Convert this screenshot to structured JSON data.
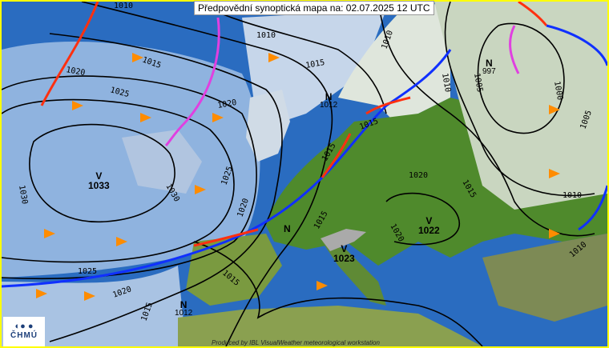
{
  "header": {
    "title": "Předpovědní synoptická mapa na: 02.07.2025 12 UTC"
  },
  "logo": {
    "text": "ČHMÚ"
  },
  "footer": {
    "credit": "Produced by IBL VisualWeather meteorological workstation"
  },
  "colors": {
    "frame": "#ffff00",
    "sea": "#2a6cc0",
    "land": "#4f8a2c",
    "cold_front": "#1030ff",
    "warm_front": "#ff3010",
    "occluded_front": "#e040e0",
    "isobar": "#000000",
    "wind_arrow": "#ff8c00"
  },
  "pressure_centers": [
    {
      "type": "V",
      "value": "1033"
    },
    {
      "type": "N",
      "value": "1012"
    },
    {
      "type": "N",
      "value": "997"
    },
    {
      "type": "V",
      "value": "1023"
    },
    {
      "type": "V",
      "value": "1022"
    },
    {
      "type": "N",
      "value": "1012"
    },
    {
      "type": "N",
      "value": ""
    }
  ],
  "isobar_labels": [
    "1010",
    "1015",
    "1020",
    "1025",
    "1030",
    "1030",
    "1025",
    "1020",
    "1015",
    "1010",
    "1020",
    "1015",
    "1015",
    "1020",
    "1020",
    "1015",
    "1010",
    "1005",
    "1010",
    "1000",
    "1005",
    "1015",
    "1025",
    "1020",
    "1015",
    "1010",
    "1015",
    "1010"
  ]
}
